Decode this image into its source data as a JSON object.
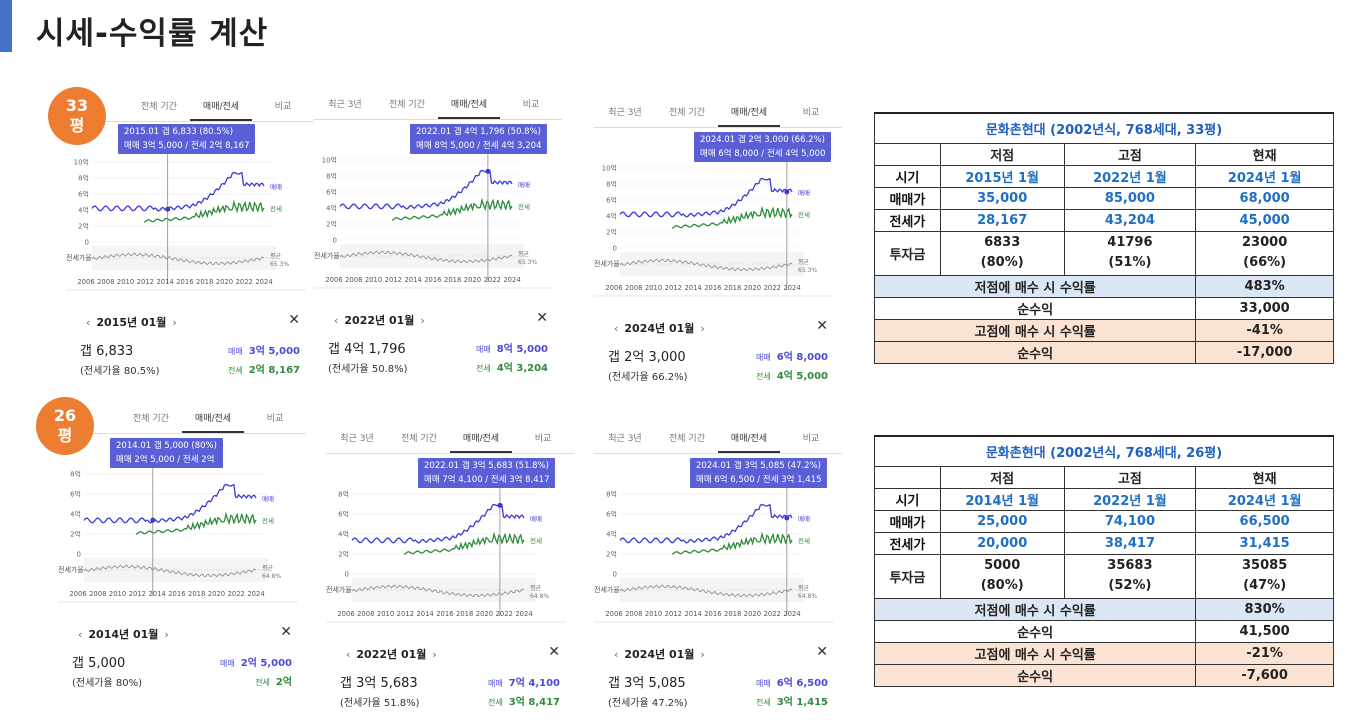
{
  "title": "시세-수익률 계산",
  "badges": {
    "p33": [
      "33",
      "평"
    ],
    "p26": [
      "26",
      "평"
    ]
  },
  "tab_labels": {
    "recent3": "최근 3년",
    "all": "전체 기간",
    "sale_rent": "매매/전세",
    "compare": "비교"
  },
  "chart_axis": {
    "x_ticks": [
      "2006",
      "2008",
      "2010",
      "2012",
      "2014",
      "2016",
      "2018",
      "2020",
      "2022",
      "2024"
    ],
    "y33": [
      "10억",
      "8억",
      "6억",
      "4억",
      "2억",
      "0"
    ],
    "y33b": [
      "10억",
      "8억",
      "6억",
      "4억",
      "2억",
      "0"
    ],
    "y26": [
      "8억",
      "6억",
      "4억",
      "2억",
      "0"
    ],
    "series_sale": "매매",
    "series_rent": "전세",
    "ratio_label": "전세가율",
    "avg_label": "평균",
    "avg33": "65.3%",
    "avg26": "64.8%"
  },
  "panels": [
    {
      "tooltip1": "2015.01  갭 6,833 (80.5%)",
      "tooltip2": "매매 3억 5,000 / 전세 2억 8,167",
      "date": "2015년 01월",
      "gap": "갭 6,833",
      "ratio": "(전세가율 80.5%)",
      "sale": "3억 5,000",
      "rent": "2억 8,167",
      "sale_label": "매매",
      "rent_label": "전세"
    },
    {
      "tooltip1": "2022.01  갭 4억 1,796 (50.8%)",
      "tooltip2": "매매 8억 5,000 / 전세 4억 3,204",
      "date": "2022년 01월",
      "gap": "갭 4억 1,796",
      "ratio": "(전세가율 50.8%)",
      "sale": "8억 5,000",
      "rent": "4억 3,204",
      "sale_label": "매매",
      "rent_label": "전세"
    },
    {
      "tooltip1": "2024.01  갭 2억 3,000 (66.2%)",
      "tooltip2": "매매 6억 8,000 / 전세 4억 5,000",
      "date": "2024년 01월",
      "gap": "갭 2억 3,000",
      "ratio": "(전세가율 66.2%)",
      "sale": "6억 8,000",
      "rent": "4억 5,000",
      "sale_label": "매매",
      "rent_label": "전세"
    },
    {
      "tooltip1": "2014.01  갭 5,000 (80%)",
      "tooltip2": "매매 2억 5,000 / 전세 2억",
      "date": "2014년 01월",
      "gap": "갭 5,000",
      "ratio": "(전세가율 80%)",
      "sale": "2억 5,000",
      "rent": "2억",
      "sale_label": "매매",
      "rent_label": "전세"
    },
    {
      "tooltip1": "2022.01  갭 3억 5,683 (51.8%)",
      "tooltip2": "매매 7억 4,100 / 전세 3억 8,417",
      "date": "2022년 01월",
      "gap": "갭 3억 5,683",
      "ratio": "(전세가율 51.8%)",
      "sale": "7억 4,100",
      "rent": "3억 8,417",
      "sale_label": "매매",
      "rent_label": "전세"
    },
    {
      "tooltip1": "2024.01  갭 3억 5,085 (47.2%)",
      "tooltip2": "매매 6억 6,500 / 전세 3억 1,415",
      "date": "2024년 01월",
      "gap": "갭 3억 5,085",
      "ratio": "(전세가율 47.2%)",
      "sale": "6억 6,500",
      "rent": "3억 1,415",
      "sale_label": "매매",
      "rent_label": "전세"
    }
  ],
  "tables": [
    {
      "title": "문화촌현대 (2002년식, 768세대, 33평)",
      "headers": [
        "저점",
        "고점",
        "현재"
      ],
      "rows": [
        {
          "h": "시기",
          "v": [
            "2015년 1월",
            "2022년 1월",
            "2024년 1월"
          ]
        },
        {
          "h": "매매가",
          "v": [
            "35,000",
            "85,000",
            "68,000"
          ]
        },
        {
          "h": "전세가",
          "v": [
            "28,167",
            "43,204",
            "45,000"
          ]
        }
      ],
      "invest": {
        "h": "투자금",
        "v": [
          [
            "6833",
            "(80%)"
          ],
          [
            "41796",
            "(51%)"
          ],
          [
            "23000",
            "(66%)"
          ]
        ]
      },
      "low_yield_label": "저점에 매수 시 수익률",
      "low_yield": "483%",
      "net1_label": "순수익",
      "net1": "33,000",
      "high_yield_label": "고점에 매수 시 수익률",
      "high_yield": "-41%",
      "net2_label": "순수익",
      "net2": "-17,000"
    },
    {
      "title": "문화촌현대 (2002년식, 768세대, 26평)",
      "headers": [
        "저점",
        "고점",
        "현재"
      ],
      "rows": [
        {
          "h": "시기",
          "v": [
            "2014년 1월",
            "2022년 1월",
            "2024년 1월"
          ]
        },
        {
          "h": "매매가",
          "v": [
            "25,000",
            "74,100",
            "66,500"
          ]
        },
        {
          "h": "전세가",
          "v": [
            "20,000",
            "38,417",
            "31,415"
          ]
        }
      ],
      "invest": {
        "h": "투자금",
        "v": [
          [
            "5000",
            "(80%)"
          ],
          [
            "35683",
            "(52%)"
          ],
          [
            "35085",
            "(47%)"
          ]
        ]
      },
      "low_yield_label": "저점에 매수 시 수익률",
      "low_yield": "830%",
      "net1_label": "순수익",
      "net1": "41,500",
      "high_yield_label": "고점에 매수 시 수익률",
      "high_yield": "-21%",
      "net2_label": "순수익",
      "net2": "-7,600"
    }
  ],
  "colors": {
    "sale": "#3a3ad6",
    "rent": "#2e8b3c",
    "ratio": "#888888",
    "tooltip": "#5b5fd6",
    "badge": "#ed7d31",
    "accent": "#4472c4"
  }
}
